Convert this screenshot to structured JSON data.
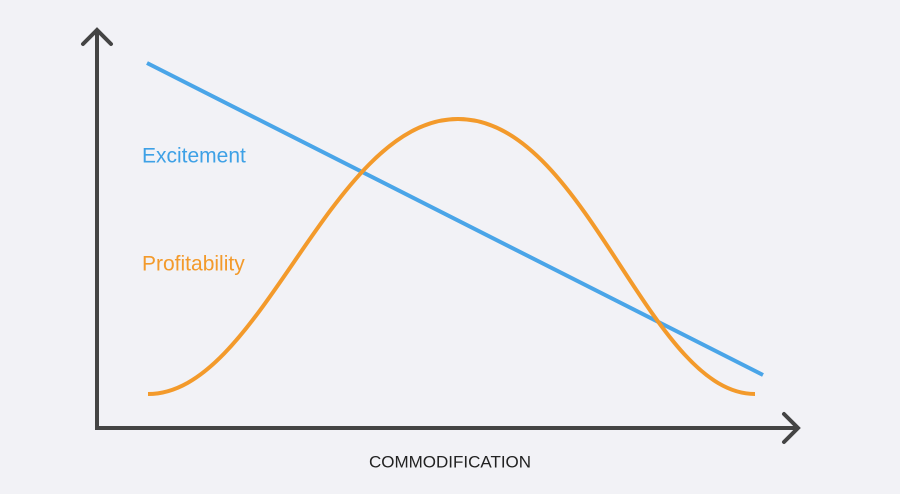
{
  "labels": {
    "excitement": "Excitement",
    "profitability": "Profitability",
    "x_axis": "COMMODIFICATION"
  }
}
